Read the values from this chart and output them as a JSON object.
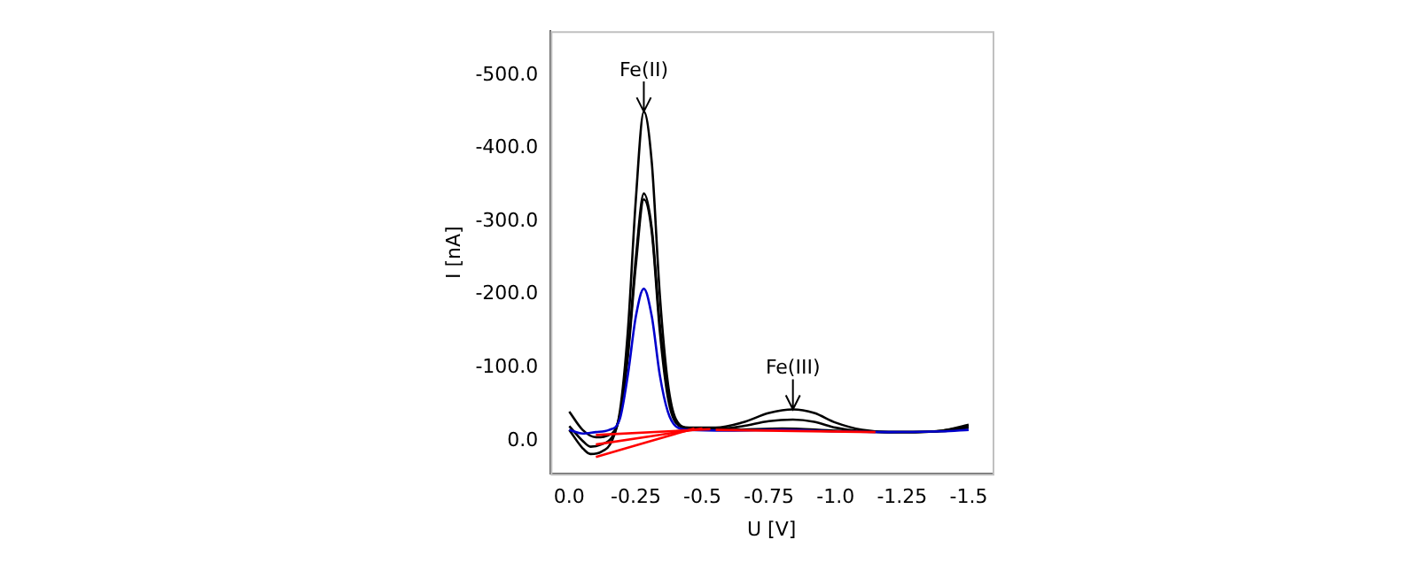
{
  "chart_data": {
    "type": "line",
    "xlabel": "U [V]",
    "ylabel": "I [nA]",
    "xlim": [
      0.07,
      -1.59
    ],
    "ylim": [
      45,
      -560
    ],
    "xticks": [
      {
        "value": 0,
        "label": "0.0"
      },
      {
        "value": -0.25,
        "label": "-0.25"
      },
      {
        "value": -0.5,
        "label": "-0.5"
      },
      {
        "value": -0.75,
        "label": "-0.75"
      },
      {
        "value": -1,
        "label": "-1.0"
      },
      {
        "value": -1.25,
        "label": "-1.25"
      },
      {
        "value": -1.5,
        "label": "-1.5"
      }
    ],
    "yticks": [
      {
        "value": 0,
        "label": "0.0"
      },
      {
        "value": -100,
        "label": "-100.0"
      },
      {
        "value": -200,
        "label": "-200.0"
      },
      {
        "value": -300,
        "label": "-300.0"
      },
      {
        "value": -400,
        "label": "-400.0"
      },
      {
        "value": -500,
        "label": "-500.0"
      }
    ],
    "grid": false,
    "legend": false,
    "marker": "none",
    "line_style": "solid",
    "annotations": [
      {
        "text": "Fe(II)",
        "x": -0.28,
        "y": -450
      },
      {
        "text": "Fe(III)",
        "x": -0.84,
        "y": -43
      }
    ],
    "series": [
      {
        "color": "#000000",
        "x": [
          0,
          -0.05,
          -0.08,
          -0.12,
          -0.16,
          -0.19,
          -0.22,
          -0.25,
          -0.28,
          -0.31,
          -0.34,
          -0.37,
          -0.4,
          -0.45,
          -0.55,
          -0.65,
          -0.75,
          -0.84,
          -0.92,
          -1,
          -1.1,
          -1.2,
          -1.3,
          -1.4,
          -1.5
        ],
        "values": [
          -15,
          10,
          18,
          15,
          0,
          -40,
          -150,
          -330,
          -450,
          -380,
          -200,
          -80,
          -30,
          -18,
          -18,
          -25,
          -38,
          -43,
          -38,
          -25,
          -15,
          -12,
          -12,
          -14,
          -22
        ]
      },
      {
        "color": "#000000",
        "x": [
          0,
          -0.05,
          -0.08,
          -0.12,
          -0.16,
          -0.19,
          -0.22,
          -0.25,
          -0.28,
          -0.31,
          -0.34,
          -0.37,
          -0.4,
          -0.45,
          -0.55,
          -0.65,
          -0.75,
          -0.84,
          -0.92,
          -1,
          -1.1,
          -1.2,
          -1.3,
          -1.4,
          -1.5
        ],
        "values": [
          -20,
          0,
          8,
          5,
          -5,
          -35,
          -120,
          -250,
          -338,
          -290,
          -160,
          -70,
          -28,
          -17,
          -16,
          -20,
          -27,
          -29,
          -26,
          -18,
          -13,
          -12,
          -12,
          -14,
          -20
        ]
      },
      {
        "color": "#000000",
        "x": [
          0,
          -0.05,
          -0.1,
          -0.16,
          -0.19,
          -0.22,
          -0.25,
          -0.28,
          -0.31,
          -0.34,
          -0.37,
          -0.4,
          -0.45,
          -0.6,
          -0.8,
          -1,
          -1.2,
          -1.4,
          -1.5
        ],
        "values": [
          -40,
          -15,
          -5,
          -10,
          -35,
          -115,
          -240,
          -330,
          -285,
          -150,
          -60,
          -25,
          -17,
          -15,
          -17,
          -14,
          -12,
          -13,
          -18
        ]
      },
      {
        "color": "#0000cc",
        "x": [
          0,
          -0.05,
          -0.1,
          -0.15,
          -0.19,
          -0.22,
          -0.25,
          -0.28,
          -0.31,
          -0.34,
          -0.37,
          -0.4,
          -0.45,
          -0.6,
          -0.8,
          -1,
          -1.2,
          -1.4,
          -1.5
        ],
        "values": [
          -15,
          -10,
          -12,
          -15,
          -30,
          -90,
          -170,
          -208,
          -170,
          -90,
          -40,
          -20,
          -15,
          -14,
          -15,
          -13,
          -12,
          -13,
          -15
        ]
      },
      {
        "color": "#ff0000",
        "x": [
          -0.1,
          -0.47
        ],
        "values": [
          22,
          -17
        ]
      },
      {
        "color": "#ff0000",
        "x": [
          -0.1,
          -0.5
        ],
        "values": [
          5,
          -17
        ]
      },
      {
        "color": "#ff0000",
        "x": [
          -0.1,
          -0.53
        ],
        "values": [
          -8,
          -16
        ]
      },
      {
        "color": "#ff0000",
        "x": [
          -0.55,
          -1.15
        ],
        "values": [
          -15,
          -12
        ]
      }
    ]
  }
}
